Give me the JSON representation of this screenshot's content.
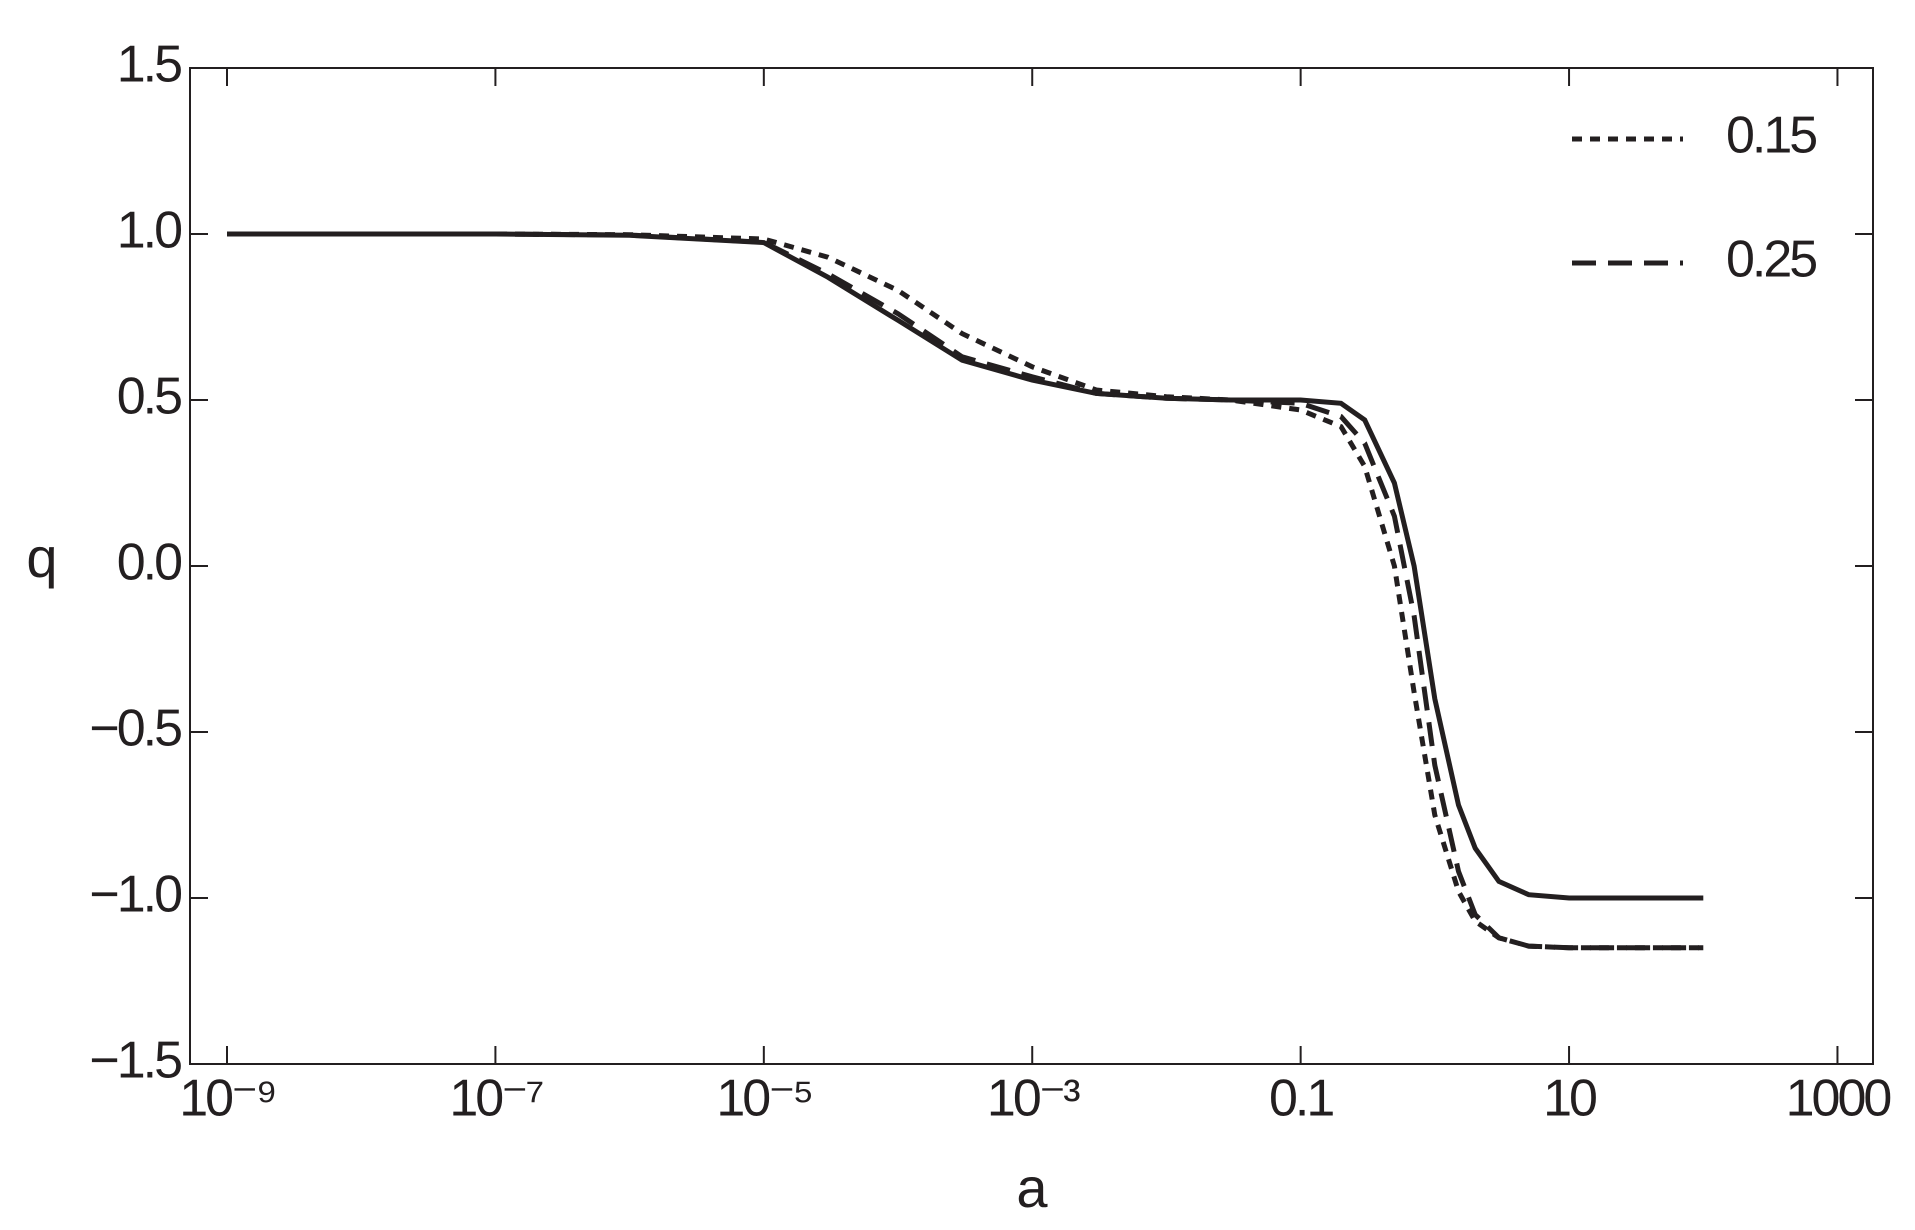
{
  "chart_data": {
    "type": "line",
    "xlabel": "a",
    "ylabel": "q",
    "xscale": "log",
    "xlim": [
      5.3e-10,
      1840
    ],
    "ylim": [
      -1.5,
      1.5
    ],
    "xticks": [
      {
        "value": 1e-09,
        "label": "10⁻⁹"
      },
      {
        "value": 1e-07,
        "label": "10⁻⁷"
      },
      {
        "value": 1e-05,
        "label": "10⁻⁵"
      },
      {
        "value": 0.001,
        "label": "10⁻³"
      },
      0.1,
      10,
      1000
    ],
    "yticks": [
      {
        "value": -1.5,
        "label": "−1.5"
      },
      {
        "value": -1,
        "label": "−1.0"
      },
      {
        "value": -0.5,
        "label": "−0.5"
      },
      {
        "value": 0,
        "label": "0.0"
      },
      0.5,
      {
        "value": 1,
        "label": "1.0"
      },
      1.5
    ],
    "legend": "upper right",
    "x": [
      1e-09,
      1e-08,
      1e-07,
      1e-06,
      1e-05,
      3e-05,
      0.0001,
      0.0003,
      0.001,
      0.003,
      0.01,
      0.03,
      0.1,
      0.2,
      0.3,
      0.5,
      0.7,
      1,
      1.5,
      2,
      3,
      5,
      10,
      30,
      100
    ],
    "series": [
      {
        "name": "0.15",
        "color": "#231f20",
        "dash": "dotted",
        "values": [
          1,
          1,
          1,
          0.998,
          0.985,
          0.93,
          0.83,
          0.7,
          0.6,
          0.53,
          0.51,
          0.5,
          0.47,
          0.42,
          0.3,
          0,
          -0.38,
          -0.75,
          -0.98,
          -1.07,
          -1.12,
          -1.145,
          -1.15,
          -1.15,
          -1.15
        ]
      },
      {
        "name": "0.25",
        "color": "#231f20",
        "dash": "dashed",
        "values": [
          1,
          1,
          1,
          0.997,
          0.975,
          0.88,
          0.76,
          0.63,
          0.57,
          0.52,
          0.505,
          0.5,
          0.49,
          0.45,
          0.37,
          0.15,
          -0.15,
          -0.6,
          -0.92,
          -1.05,
          -1.12,
          -1.145,
          -1.15,
          -1.15,
          -1.15
        ]
      },
      {
        "color": "#231f20",
        "dash": "solid",
        "values": [
          1,
          1,
          1,
          0.996,
          0.974,
          0.87,
          0.74,
          0.62,
          0.56,
          0.52,
          0.505,
          0.5,
          0.5,
          0.49,
          0.44,
          0.25,
          0,
          -0.4,
          -0.72,
          -0.85,
          -0.95,
          -0.99,
          -1,
          -1,
          -1
        ]
      }
    ]
  }
}
